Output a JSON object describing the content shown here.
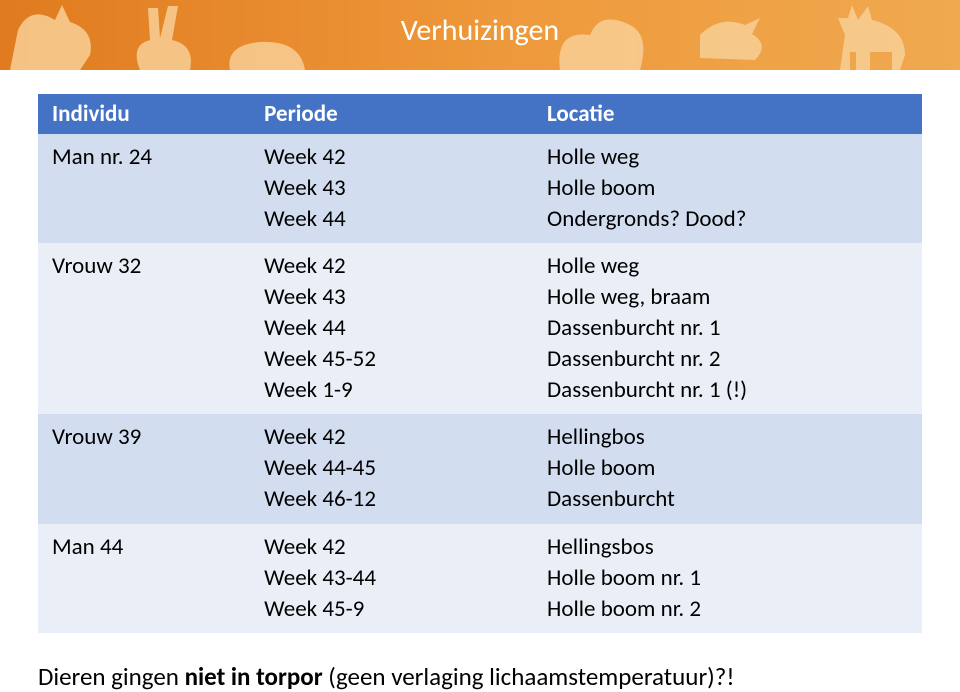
{
  "banner": {
    "title": "Verhuizingen",
    "title_color": "#ffffff",
    "gradient_from": "#e07b1f",
    "gradient_to": "#f0a94f",
    "silhouette_color": "#f8cf95"
  },
  "table": {
    "header_bg": "#4472c4",
    "row_odd_bg": "#d2deef",
    "row_even_bg": "#eaeff7",
    "columns": [
      "Individu",
      "Periode",
      "Locatie"
    ],
    "col_widths": [
      "24%",
      "32%",
      "44%"
    ],
    "rows": [
      {
        "individu": "Man nr. 24",
        "periode": "Week 42\nWeek 43\nWeek 44",
        "locatie": "Holle weg\nHolle boom\nOndergronds? Dood?"
      },
      {
        "individu": "Vrouw 32",
        "periode": "Week 42\nWeek 43\nWeek 44\nWeek 45-52\nWeek 1-9",
        "locatie": "Holle weg\nHolle weg, braam\nDassenburcht nr. 1\nDassenburcht nr. 2\nDassenburcht nr. 1 (!)"
      },
      {
        "individu": "Vrouw 39",
        "periode": "Week 42\nWeek 44-45\nWeek 46-12",
        "locatie": "Hellingbos\nHolle boom\nDassenburcht"
      },
      {
        "individu": "Man 44",
        "periode": "Week 42\nWeek 43-44\nWeek 45-9",
        "locatie": "Hellingsbos\nHolle boom nr. 1\nHolle boom nr. 2"
      }
    ]
  },
  "footnote": {
    "pre": "Dieren gingen ",
    "bold": "niet in torpor",
    "post": " (geen verlaging lichaamstemperatuur)?!"
  }
}
